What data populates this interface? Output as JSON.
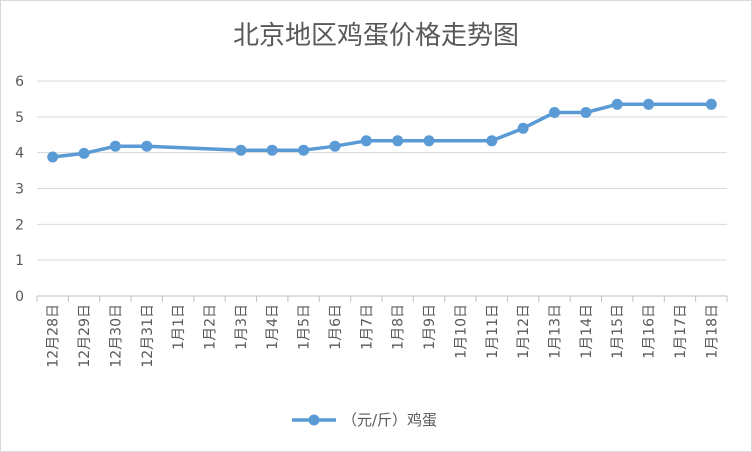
{
  "chart_data": {
    "type": "line",
    "title": "北京地区鸡蛋价格走势图",
    "xlabel": "",
    "ylabel": "",
    "ylim": [
      0,
      6
    ],
    "yticks": [
      "0",
      "1",
      "2",
      "3",
      "4",
      "5",
      "6"
    ],
    "grid": true,
    "legend_position": "bottom",
    "categories": [
      "12月28日",
      "12月29日",
      "12月30日",
      "12月31日",
      "1月1日",
      "1月2日",
      "1月3日",
      "1月4日",
      "1月5日",
      "1月6日",
      "1月7日",
      "1月8日",
      "1月9日",
      "1月10日",
      "1月11日",
      "1月12日",
      "1月13日",
      "1月14日",
      "1月15日",
      "1月16日",
      "1月17日",
      "1月18日"
    ],
    "series": [
      {
        "name": "（元/斤）鸡蛋",
        "color": "#5b9bd5",
        "values": [
          3.88,
          3.98,
          4.18,
          4.18,
          null,
          null,
          4.07,
          4.07,
          4.07,
          4.18,
          4.33,
          4.33,
          4.33,
          null,
          4.33,
          4.68,
          5.12,
          5.12,
          5.35,
          5.35,
          null,
          5.35
        ]
      }
    ]
  }
}
